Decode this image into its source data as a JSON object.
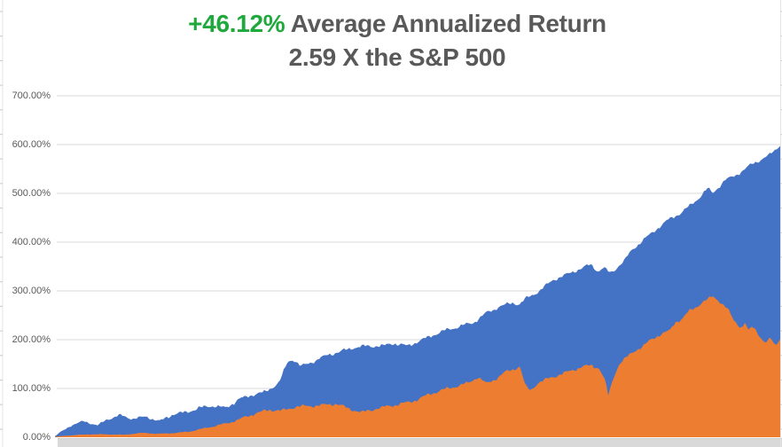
{
  "chart_data": {
    "type": "area",
    "title": {
      "highlight": "+46.12%",
      "rest": " Average Annualized Return",
      "line2": "2.59 X the S&P 500"
    },
    "title_color": "#595959",
    "highlight_color": "#1fa83c",
    "background": "#FFFFFF",
    "legend": "none",
    "x_axis": {
      "labels_visible": false,
      "collapsed_band_color": "#D9D9D9",
      "band_edge_color": "#C9C9C9"
    },
    "y_axis": {
      "min": 0,
      "max": 700,
      "tick_step": 100,
      "unit": "percent",
      "tick_values": [
        0,
        100,
        200,
        300,
        400,
        500,
        600,
        700
      ],
      "tick_labels": [
        "0.00%",
        "100.00%",
        "200.00%",
        "300.00%",
        "400.00%",
        "500.00%",
        "600.00%",
        "700.00%"
      ],
      "label_color": "#595959",
      "grid_color": "#D9D9D9",
      "grid_on": true
    },
    "series": [
      {
        "name": "blue",
        "color": "#4472C4",
        "texture": 5,
        "phase": 0,
        "points": [
          [
            0,
            2
          ],
          [
            0.006,
            9
          ],
          [
            0.022,
            24
          ],
          [
            0.04,
            33
          ],
          [
            0.059,
            24
          ],
          [
            0.071,
            36
          ],
          [
            0.089,
            45
          ],
          [
            0.107,
            38
          ],
          [
            0.126,
            42
          ],
          [
            0.144,
            33
          ],
          [
            0.162,
            47
          ],
          [
            0.18,
            51
          ],
          [
            0.199,
            60
          ],
          [
            0.217,
            65
          ],
          [
            0.235,
            60
          ],
          [
            0.254,
            78
          ],
          [
            0.272,
            87
          ],
          [
            0.29,
            93
          ],
          [
            0.309,
            112
          ],
          [
            0.321,
            155
          ],
          [
            0.329,
            160
          ],
          [
            0.339,
            145
          ],
          [
            0.357,
            156
          ],
          [
            0.376,
            169
          ],
          [
            0.394,
            176
          ],
          [
            0.412,
            184
          ],
          [
            0.43,
            187
          ],
          [
            0.449,
            187
          ],
          [
            0.467,
            193
          ],
          [
            0.485,
            187
          ],
          [
            0.504,
            198
          ],
          [
            0.522,
            210
          ],
          [
            0.54,
            220
          ],
          [
            0.559,
            228
          ],
          [
            0.577,
            235
          ],
          [
            0.595,
            255
          ],
          [
            0.613,
            268
          ],
          [
            0.632,
            276
          ],
          [
            0.64,
            272
          ],
          [
            0.648,
            283
          ],
          [
            0.668,
            300
          ],
          [
            0.687,
            323
          ],
          [
            0.705,
            333
          ],
          [
            0.723,
            345
          ],
          [
            0.739,
            354
          ],
          [
            0.749,
            340
          ],
          [
            0.756,
            348
          ],
          [
            0.766,
            336
          ],
          [
            0.776,
            350
          ],
          [
            0.785,
            362
          ],
          [
            0.796,
            385
          ],
          [
            0.815,
            409
          ],
          [
            0.827,
            424
          ],
          [
            0.845,
            445
          ],
          [
            0.863,
            460
          ],
          [
            0.876,
            475
          ],
          [
            0.888,
            491
          ],
          [
            0.9,
            510
          ],
          [
            0.907,
            501
          ],
          [
            0.915,
            513
          ],
          [
            0.924,
            527
          ],
          [
            0.937,
            536
          ],
          [
            0.949,
            547
          ],
          [
            0.961,
            560
          ],
          [
            0.973,
            569
          ],
          [
            0.985,
            578
          ],
          [
            0.995,
            592
          ],
          [
            1,
            600
          ]
        ]
      },
      {
        "name": "orange",
        "color": "#ED7D31",
        "texture": 4.5,
        "phase": 137,
        "points": [
          [
            0,
            1
          ],
          [
            0.022,
            4
          ],
          [
            0.046,
            6
          ],
          [
            0.071,
            6
          ],
          [
            0.095,
            5
          ],
          [
            0.12,
            9
          ],
          [
            0.144,
            7
          ],
          [
            0.168,
            9
          ],
          [
            0.187,
            12
          ],
          [
            0.205,
            18
          ],
          [
            0.223,
            24
          ],
          [
            0.241,
            30
          ],
          [
            0.26,
            40
          ],
          [
            0.278,
            50
          ],
          [
            0.296,
            56
          ],
          [
            0.315,
            55
          ],
          [
            0.333,
            63
          ],
          [
            0.351,
            64
          ],
          [
            0.37,
            66
          ],
          [
            0.388,
            69
          ],
          [
            0.406,
            58
          ],
          [
            0.424,
            51
          ],
          [
            0.443,
            59
          ],
          [
            0.461,
            64
          ],
          [
            0.479,
            69
          ],
          [
            0.498,
            76
          ],
          [
            0.516,
            88
          ],
          [
            0.534,
            97
          ],
          [
            0.552,
            104
          ],
          [
            0.571,
            112
          ],
          [
            0.583,
            124
          ],
          [
            0.595,
            110
          ],
          [
            0.607,
            119
          ],
          [
            0.62,
            133
          ],
          [
            0.632,
            139
          ],
          [
            0.641,
            146
          ],
          [
            0.649,
            103
          ],
          [
            0.656,
            96
          ],
          [
            0.666,
            112
          ],
          [
            0.68,
            120
          ],
          [
            0.695,
            128
          ],
          [
            0.711,
            136
          ],
          [
            0.727,
            145
          ],
          [
            0.741,
            147
          ],
          [
            0.751,
            141
          ],
          [
            0.759,
            114
          ],
          [
            0.763,
            85
          ],
          [
            0.77,
            122
          ],
          [
            0.778,
            151
          ],
          [
            0.79,
            166
          ],
          [
            0.8,
            178
          ],
          [
            0.811,
            187
          ],
          [
            0.823,
            201
          ],
          [
            0.835,
            211
          ],
          [
            0.848,
            219
          ],
          [
            0.855,
            236
          ],
          [
            0.865,
            243
          ],
          [
            0.874,
            258
          ],
          [
            0.883,
            266
          ],
          [
            0.893,
            277
          ],
          [
            0.901,
            283
          ],
          [
            0.907,
            289
          ],
          [
            0.915,
            281
          ],
          [
            0.922,
            271
          ],
          [
            0.929,
            259
          ],
          [
            0.935,
            242
          ],
          [
            0.941,
            232
          ],
          [
            0.948,
            224
          ],
          [
            0.951,
            236
          ],
          [
            0.956,
            218
          ],
          [
            0.962,
            228
          ],
          [
            0.968,
            217
          ],
          [
            0.974,
            202
          ],
          [
            0.98,
            193
          ],
          [
            0.987,
            203
          ],
          [
            0.993,
            188
          ],
          [
            1,
            203
          ]
        ]
      }
    ]
  }
}
